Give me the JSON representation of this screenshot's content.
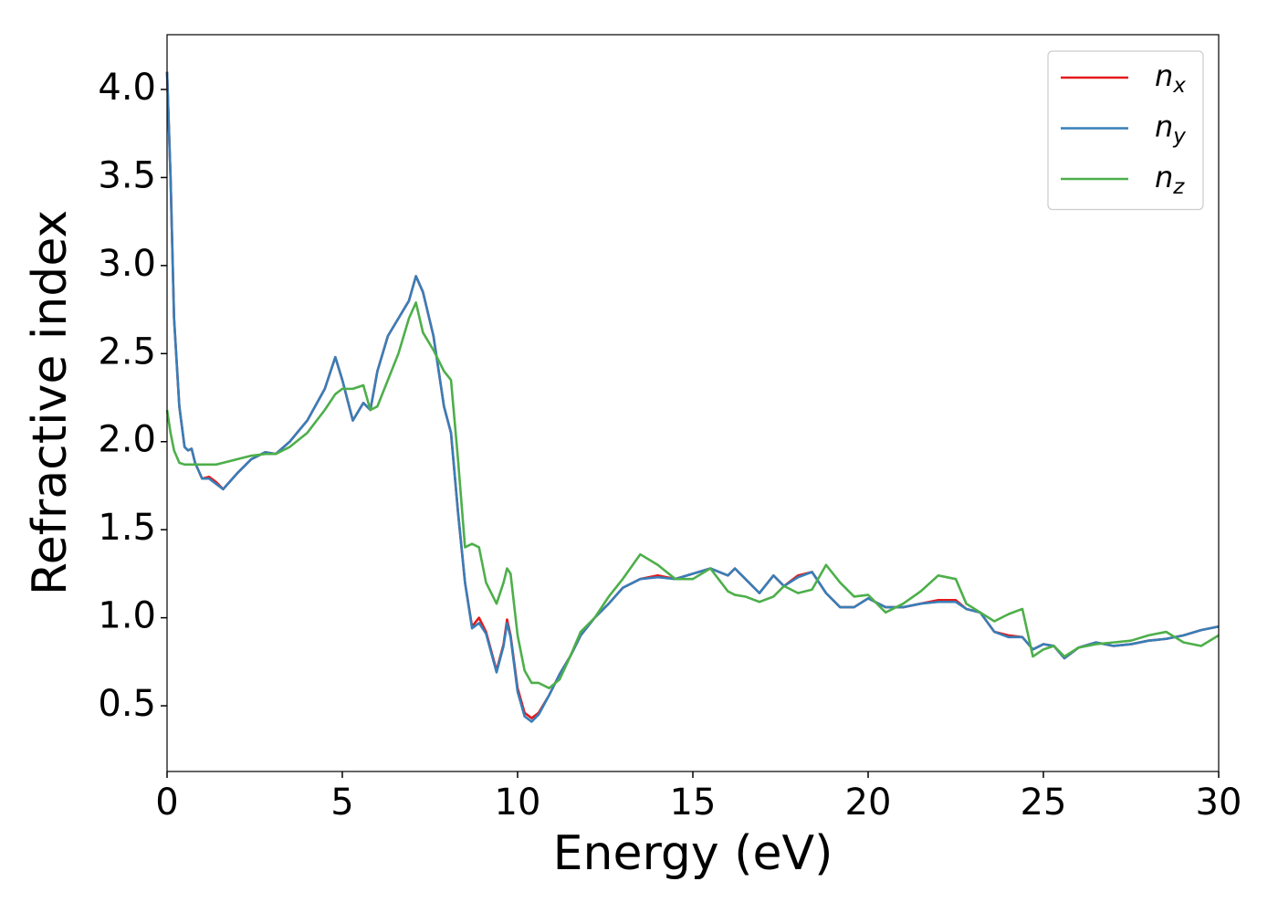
{
  "chart_data": {
    "type": "line",
    "xlabel": "Energy (eV)",
    "ylabel": "Refractive index",
    "xlim": [
      0,
      30
    ],
    "ylim": [
      0.127,
      4.311
    ],
    "xticks": [
      0,
      5,
      10,
      15,
      20,
      25,
      30
    ],
    "yticks": [
      0.5,
      {
        "value": 1,
        "label": "1.0"
      },
      1.5,
      {
        "value": 2,
        "label": "2.0"
      },
      2.5,
      {
        "value": 3,
        "label": "3.0"
      },
      3.5,
      {
        "value": 4,
        "label": "4.0"
      }
    ],
    "legend": "upper right",
    "x": [
      0,
      0.1,
      0.2,
      0.35,
      0.5,
      0.6,
      0.7,
      0.8,
      1.0,
      1.2,
      1.4,
      1.6,
      2.0,
      2.4,
      2.8,
      3.1,
      3.5,
      4.0,
      4.5,
      4.8,
      5.0,
      5.3,
      5.6,
      5.8,
      6.0,
      6.3,
      6.6,
      6.9,
      7.1,
      7.3,
      7.6,
      7.9,
      8.1,
      8.3,
      8.5,
      8.7,
      8.9,
      9.1,
      9.4,
      9.6,
      9.7,
      9.8,
      10.0,
      10.2,
      10.4,
      10.6,
      10.9,
      11.2,
      11.5,
      11.8,
      12.2,
      12.6,
      13.0,
      13.5,
      14.0,
      14.5,
      15.0,
      15.5,
      16.0,
      16.2,
      16.5,
      16.9,
      17.3,
      17.6,
      18.0,
      18.4,
      18.8,
      19.2,
      19.6,
      20.0,
      20.5,
      21.0,
      21.5,
      22.0,
      22.5,
      22.8,
      23.2,
      23.6,
      24.0,
      24.4,
      24.7,
      25.0,
      25.3,
      25.6,
      26.0,
      26.5,
      27.0,
      27.5,
      28.0,
      28.5,
      29.0,
      29.5,
      30.0
    ],
    "series": [
      {
        "name": "nx",
        "color": "#e41a1c",
        "values": [
          4.1,
          3.5,
          2.7,
          2.2,
          1.97,
          1.95,
          1.96,
          1.88,
          1.79,
          1.8,
          1.77,
          1.73,
          1.82,
          1.9,
          1.94,
          1.93,
          2.0,
          2.12,
          2.3,
          2.48,
          2.35,
          2.12,
          2.22,
          2.18,
          2.4,
          2.6,
          2.7,
          2.8,
          2.94,
          2.85,
          2.6,
          2.2,
          2.05,
          1.6,
          1.2,
          0.95,
          1.0,
          0.92,
          0.7,
          0.85,
          0.99,
          0.9,
          0.6,
          0.46,
          0.43,
          0.46,
          0.56,
          0.68,
          0.78,
          0.9,
          1.0,
          1.08,
          1.17,
          1.22,
          1.24,
          1.22,
          1.25,
          1.28,
          1.24,
          1.28,
          1.22,
          1.14,
          1.24,
          1.18,
          1.24,
          1.26,
          1.14,
          1.06,
          1.06,
          1.11,
          1.06,
          1.06,
          1.08,
          1.1,
          1.1,
          1.05,
          1.03,
          0.92,
          0.9,
          0.89,
          0.82,
          0.85,
          0.84,
          0.77,
          0.83,
          0.86,
          0.84,
          0.85,
          0.87,
          0.88,
          0.9,
          0.93,
          0.95
        ]
      },
      {
        "name": "ny",
        "color": "#377eb8",
        "values": [
          4.1,
          3.5,
          2.7,
          2.2,
          1.97,
          1.95,
          1.96,
          1.88,
          1.79,
          1.79,
          1.76,
          1.73,
          1.82,
          1.9,
          1.94,
          1.93,
          2.0,
          2.12,
          2.3,
          2.48,
          2.35,
          2.12,
          2.22,
          2.18,
          2.4,
          2.6,
          2.7,
          2.8,
          2.94,
          2.85,
          2.6,
          2.2,
          2.05,
          1.6,
          1.2,
          0.94,
          0.97,
          0.91,
          0.69,
          0.84,
          0.97,
          0.89,
          0.58,
          0.44,
          0.41,
          0.45,
          0.56,
          0.68,
          0.78,
          0.9,
          1.0,
          1.08,
          1.17,
          1.22,
          1.23,
          1.22,
          1.25,
          1.28,
          1.24,
          1.28,
          1.22,
          1.14,
          1.24,
          1.18,
          1.23,
          1.26,
          1.14,
          1.06,
          1.06,
          1.11,
          1.06,
          1.06,
          1.08,
          1.09,
          1.09,
          1.05,
          1.03,
          0.92,
          0.89,
          0.89,
          0.82,
          0.85,
          0.84,
          0.77,
          0.83,
          0.86,
          0.84,
          0.85,
          0.87,
          0.88,
          0.9,
          0.93,
          0.95
        ]
      },
      {
        "name": "nz",
        "color": "#4daf4a",
        "values": [
          2.18,
          2.05,
          1.95,
          1.88,
          1.87,
          1.87,
          1.87,
          1.87,
          1.87,
          1.87,
          1.87,
          1.88,
          1.9,
          1.92,
          1.93,
          1.93,
          1.97,
          2.05,
          2.18,
          2.27,
          2.3,
          2.3,
          2.32,
          2.18,
          2.2,
          2.35,
          2.5,
          2.7,
          2.79,
          2.62,
          2.52,
          2.4,
          2.35,
          1.9,
          1.4,
          1.42,
          1.4,
          1.2,
          1.08,
          1.2,
          1.28,
          1.25,
          0.9,
          0.7,
          0.63,
          0.63,
          0.6,
          0.65,
          0.78,
          0.92,
          1.0,
          1.12,
          1.22,
          1.36,
          1.3,
          1.22,
          1.22,
          1.28,
          1.15,
          1.13,
          1.12,
          1.09,
          1.12,
          1.18,
          1.14,
          1.16,
          1.3,
          1.2,
          1.12,
          1.13,
          1.03,
          1.08,
          1.15,
          1.24,
          1.22,
          1.08,
          1.03,
          0.98,
          1.02,
          1.05,
          0.78,
          0.82,
          0.84,
          0.78,
          0.83,
          0.85,
          0.86,
          0.87,
          0.9,
          0.92,
          0.86,
          0.84,
          0.9
        ]
      }
    ]
  }
}
